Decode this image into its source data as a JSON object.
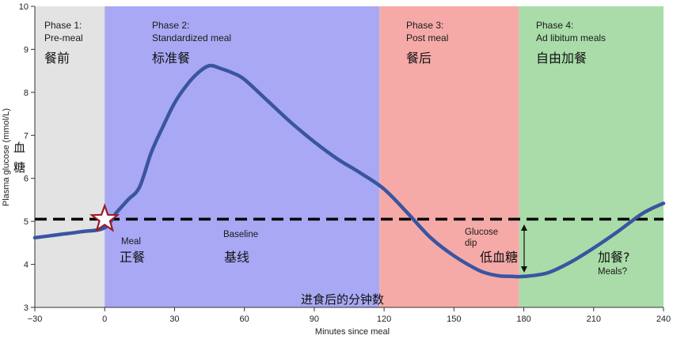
{
  "chart_data": {
    "type": "line",
    "xlabel": "Minutes since meal",
    "xlabel_cn": "进食后的分钟数",
    "ylabel": "Plasma glucose (mmol/L)",
    "ylabel_cn": "血糖",
    "xlim": [
      -30,
      240
    ],
    "ylim": [
      3,
      10
    ],
    "xticks": [
      -30,
      0,
      30,
      60,
      90,
      120,
      150,
      180,
      210,
      240
    ],
    "xtick_labels": [
      "−30",
      "0",
      "30",
      "60",
      "90",
      "120",
      "150",
      "180",
      "210",
      "240"
    ],
    "yticks": [
      3,
      4,
      5,
      6,
      7,
      8,
      9,
      10
    ],
    "grid": false,
    "baseline": {
      "y": 5.05,
      "style": "dashed",
      "color": "#000000"
    },
    "phases": [
      {
        "x0": -30,
        "x1": 0,
        "color": "#e3e3e3",
        "title_line1": "Phase 1:",
        "title_line2": "Pre-meal",
        "label_cn": "餐前"
      },
      {
        "x0": 0,
        "x1": 118,
        "color": "#a8a8f4",
        "title_line1": "Phase 2:",
        "title_line2": "Standardized meal",
        "label_cn": "标准餐"
      },
      {
        "x0": 118,
        "x1": 178,
        "color": "#f5aaa8",
        "title_line1": "Phase 3:",
        "title_line2": "Post meal",
        "label_cn": "餐后"
      },
      {
        "x0": 178,
        "x1": 240,
        "color": "#a9dca9",
        "title_line1": "Phase 4:",
        "title_line2": "Ad libitum meals",
        "label_cn": "自由加餐"
      }
    ],
    "series": [
      {
        "color": "#3a55a0",
        "x": [
          -30,
          -20,
          -10,
          0,
          5,
          10,
          15,
          20,
          25,
          30,
          35,
          40,
          45,
          50,
          55,
          60,
          70,
          80,
          90,
          100,
          110,
          120,
          130,
          140,
          150,
          160,
          165,
          170,
          175,
          180,
          190,
          200,
          210,
          220,
          230,
          235,
          240
        ],
        "values": [
          4.62,
          4.69,
          4.76,
          4.85,
          5.2,
          5.5,
          5.8,
          6.6,
          7.2,
          7.75,
          8.15,
          8.45,
          8.62,
          8.55,
          8.45,
          8.3,
          7.8,
          7.3,
          6.85,
          6.45,
          6.12,
          5.75,
          5.2,
          4.62,
          4.2,
          3.88,
          3.78,
          3.73,
          3.72,
          3.72,
          3.8,
          4.05,
          4.38,
          4.75,
          5.15,
          5.3,
          5.42
        ]
      }
    ],
    "annotations": {
      "meal_en": "Meal",
      "meal_cn": "正餐",
      "baseline_en": "Baseline",
      "baseline_cn": "基线",
      "dip_line1": "Glucose",
      "dip_line2": "dip",
      "dip_cn": "低血糖",
      "meals_cn": "加餐?",
      "meals_en": "Meals?"
    },
    "colors": {
      "star_stroke": "#9a1b2a",
      "star_fill": "#ffffff"
    }
  }
}
